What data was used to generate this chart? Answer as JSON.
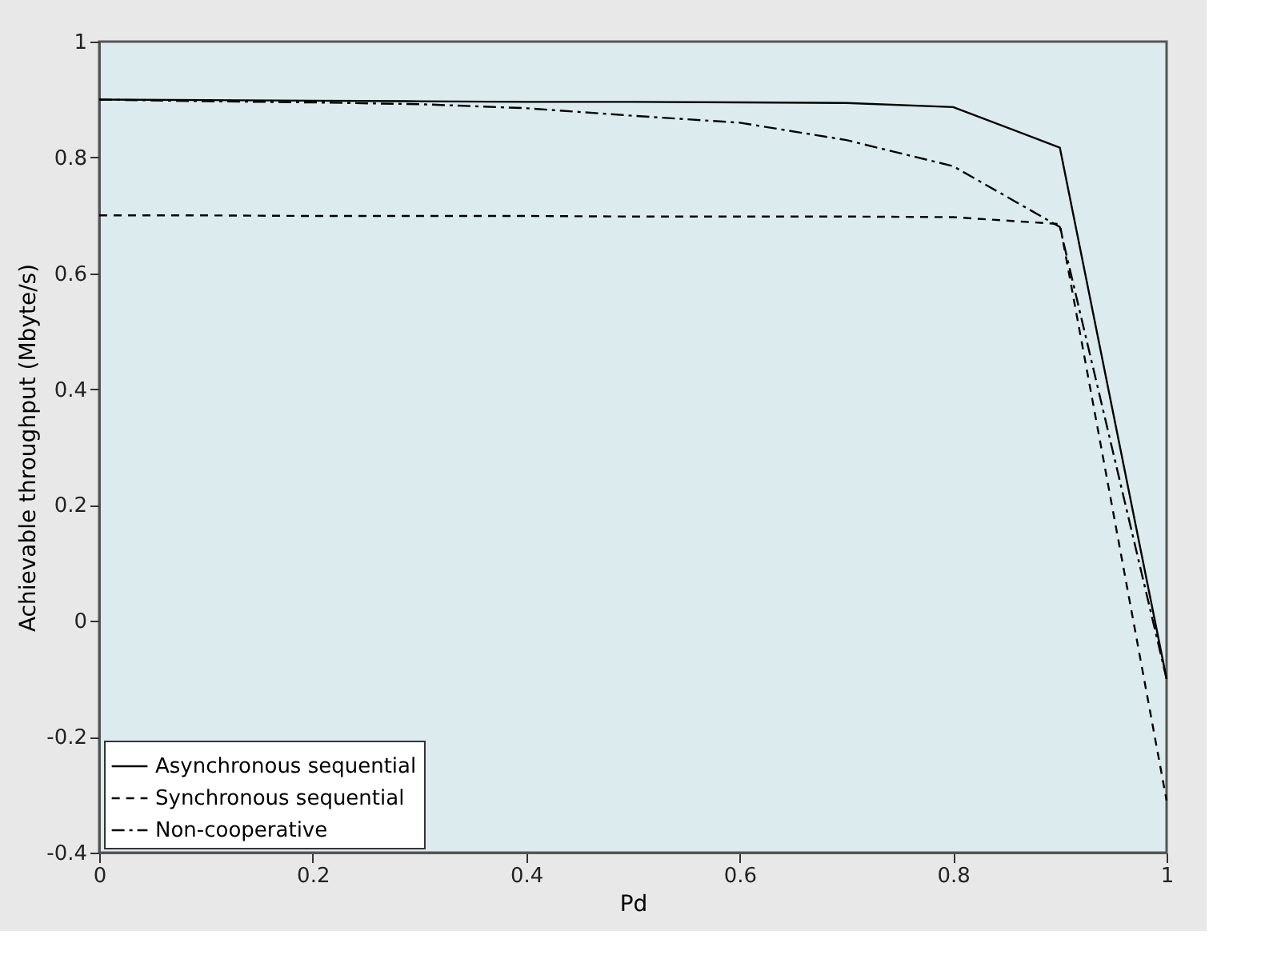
{
  "chart_data": {
    "type": "line",
    "xlabel": "Pd",
    "ylabel": "Achievable throughput (Mbyte/s)",
    "x": [
      0,
      0.1,
      0.2,
      0.3,
      0.4,
      0.5,
      0.6,
      0.7,
      0.8,
      0.9,
      1
    ],
    "series": [
      {
        "name": "Asynchronous sequential",
        "color": "#000000",
        "line_style": "solid",
        "values": [
          0.9,
          0.899,
          0.898,
          0.897,
          0.896,
          0.896,
          0.895,
          0.894,
          0.887,
          0.817,
          -0.1
        ]
      },
      {
        "name": "Synchronous sequential",
        "color": "#000000",
        "line_style": "dashed",
        "values": [
          0.7,
          0.7,
          0.699,
          0.699,
          0.699,
          0.698,
          0.698,
          0.698,
          0.697,
          0.685,
          -0.31
        ]
      },
      {
        "name": "Non-cooperative",
        "color": "#000000",
        "line_style": "dashdot",
        "values": [
          0.9,
          0.897,
          0.895,
          0.892,
          0.885,
          0.872,
          0.86,
          0.83,
          0.785,
          0.68,
          -0.1
        ]
      }
    ],
    "xlim": [
      0,
      1
    ],
    "xticks": [
      0,
      0.2,
      0.4,
      0.6,
      0.8,
      1
    ],
    "ylim": [
      -0.4,
      1
    ],
    "yticks": [
      -0.4,
      -0.2,
      0,
      0.2,
      0.4,
      0.6,
      0.8,
      1
    ],
    "grid": false,
    "legend": "bottom left"
  }
}
